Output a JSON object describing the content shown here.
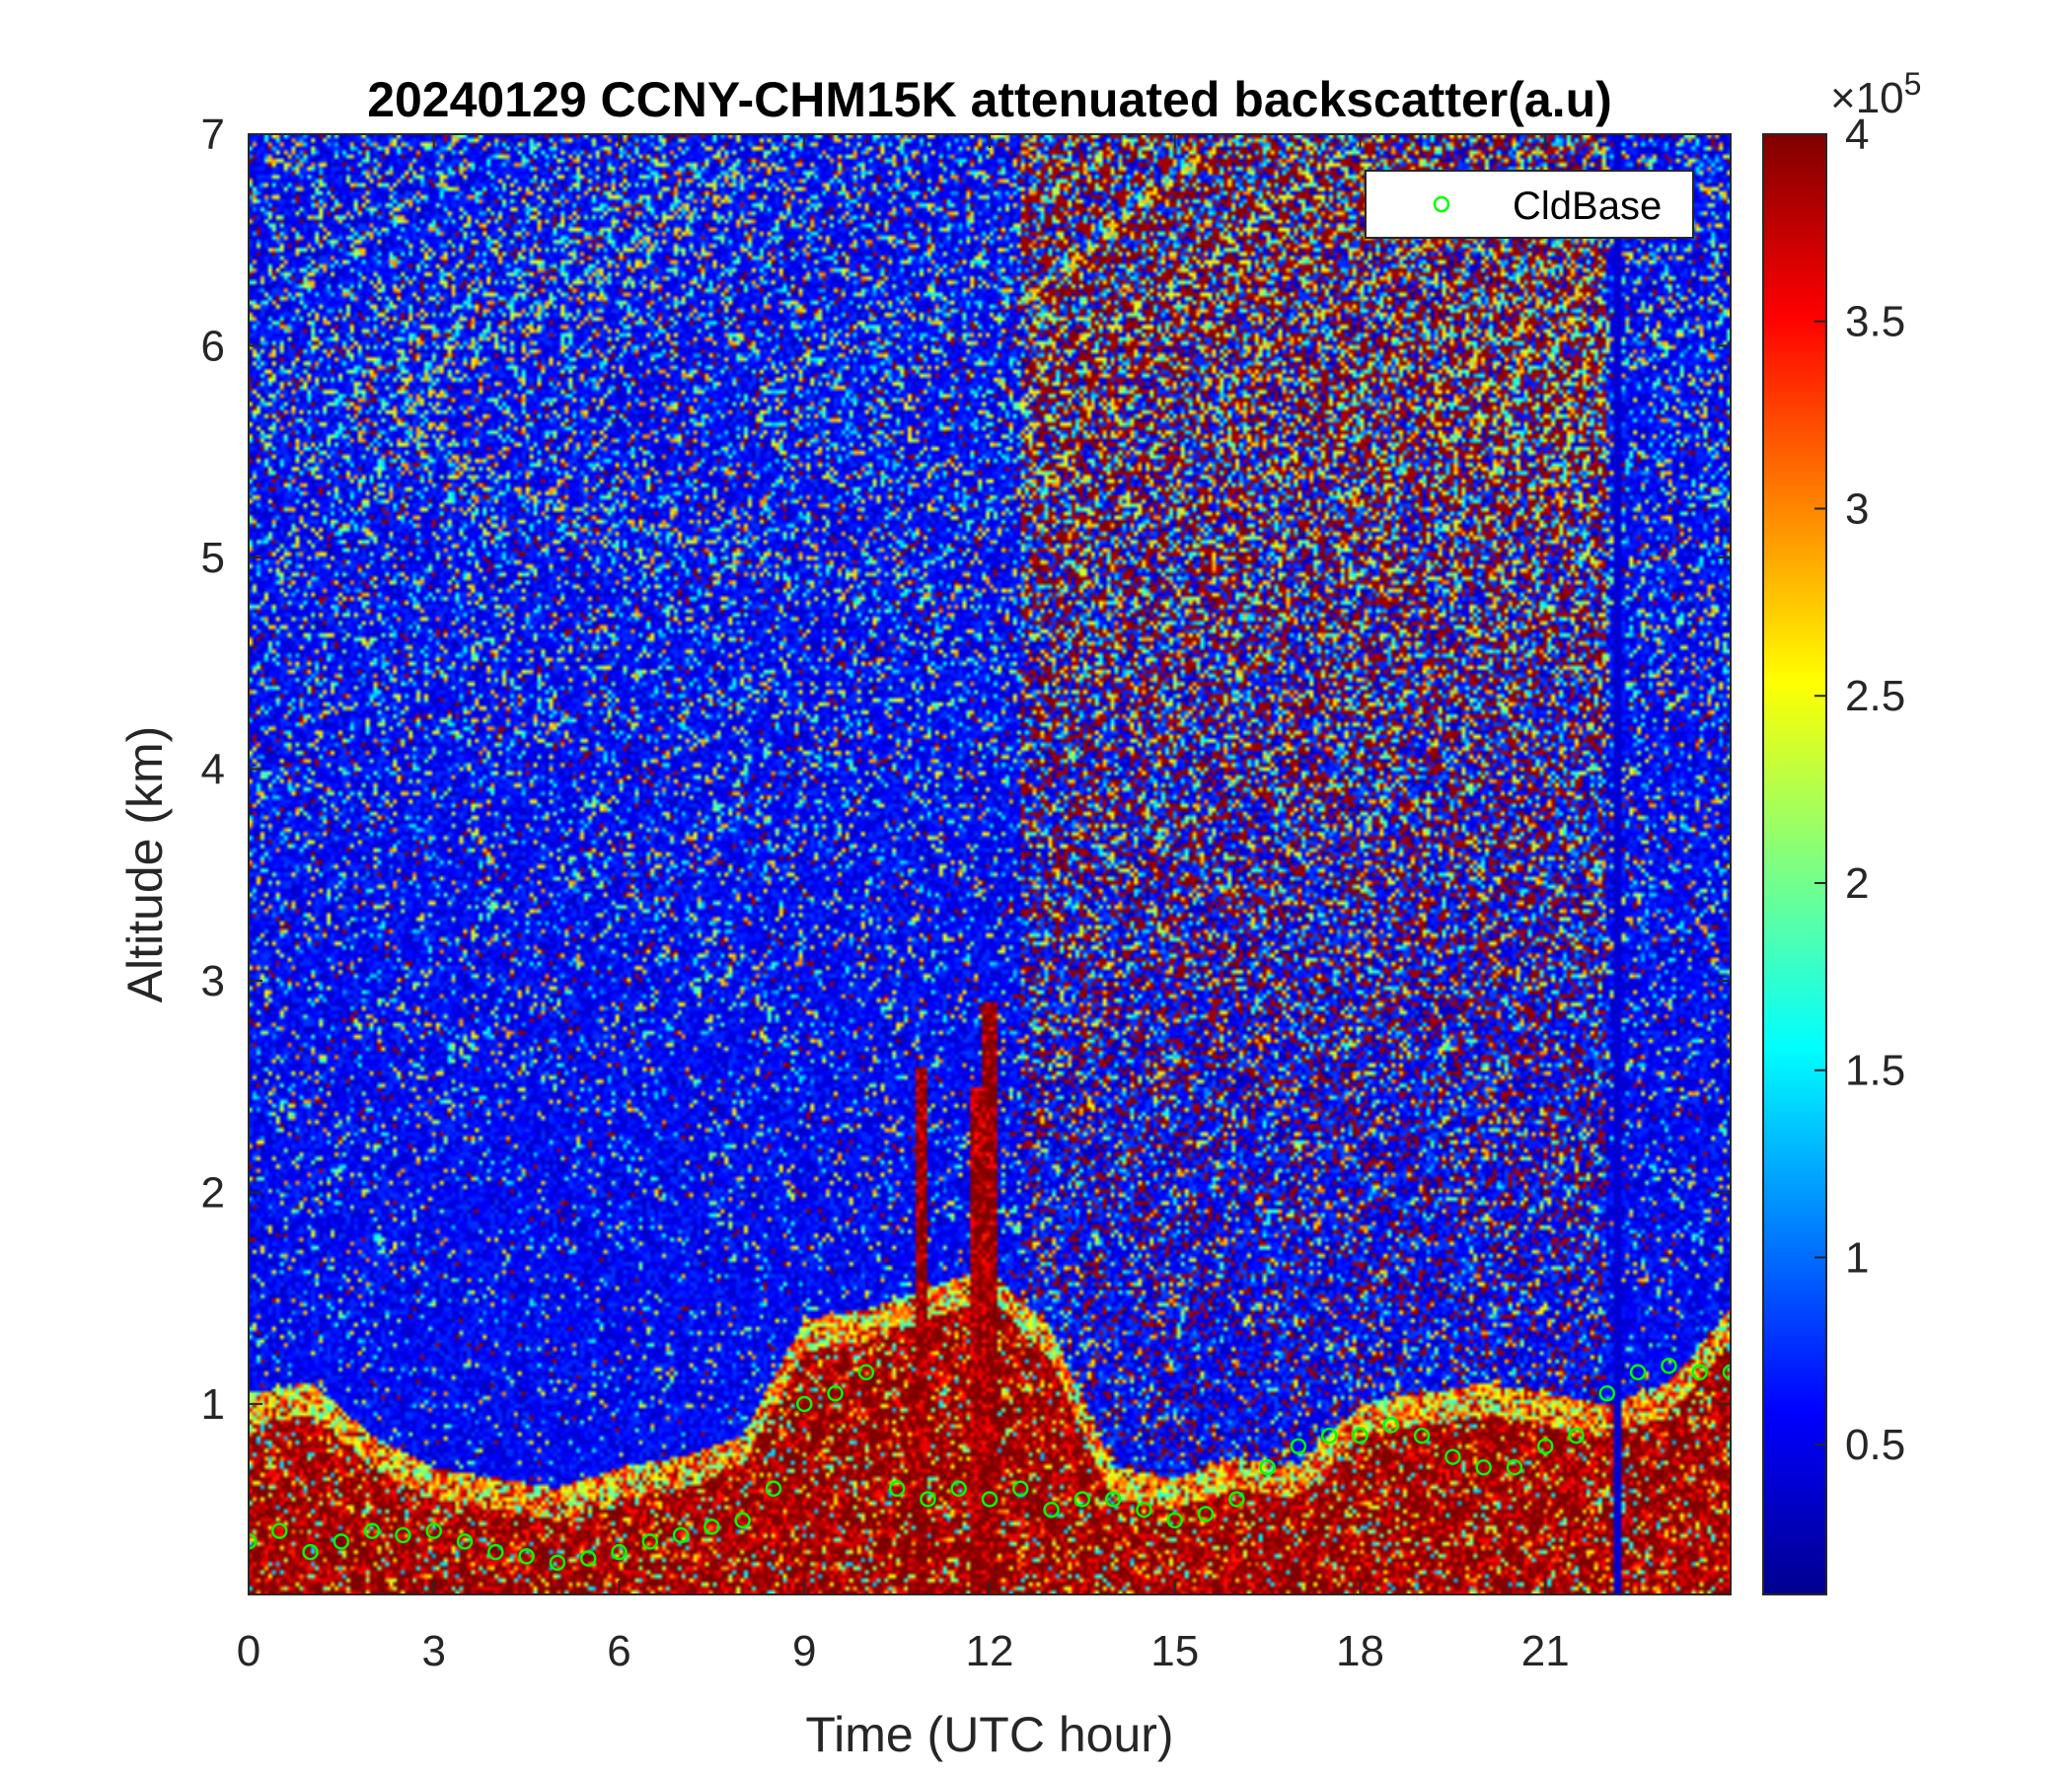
{
  "chart_data": {
    "type": "heatmap",
    "title": "20240129 CCNY-CHM15K attenuated backscatter(a.u)",
    "xlabel": "Time (UTC hour)",
    "ylabel": "Altitude (km)",
    "xlim": [
      0,
      24
    ],
    "ylim": [
      0.1,
      7
    ],
    "x_ticks": [
      0,
      3,
      6,
      9,
      12,
      15,
      18,
      21
    ],
    "x_tick_labels": [
      "0",
      "3",
      "6",
      "9",
      "12",
      "15",
      "18",
      "21"
    ],
    "y_ticks": [
      1,
      2,
      3,
      4,
      5,
      6,
      7
    ],
    "y_tick_labels": [
      "1",
      "2",
      "3",
      "4",
      "5",
      "6",
      "7"
    ],
    "colorbar": {
      "colormap": "jet",
      "range": [
        10000,
        400000
      ],
      "ticks": [
        0.5,
        1,
        1.5,
        2,
        2.5,
        3,
        3.5,
        4
      ],
      "tick_labels": [
        "0.5",
        "1",
        "1.5",
        "2",
        "2.5",
        "3",
        "3.5",
        "4"
      ],
      "multiplier_label": "×10",
      "multiplier_exponent": "5"
    },
    "legend": {
      "entries": [
        "CldBase"
      ],
      "placement": "top-right",
      "marker": "circle",
      "color": "#00ff00"
    },
    "series": [
      {
        "name": "CldBase",
        "marker": "o",
        "color": "#00ff00",
        "x": [
          0.0,
          0.5,
          1.0,
          1.5,
          2.0,
          2.5,
          3.0,
          3.5,
          4.0,
          4.5,
          5.0,
          5.5,
          6.0,
          6.5,
          7.0,
          7.5,
          8.0,
          8.5,
          9.0,
          9.5,
          10.0,
          10.5,
          11.0,
          11.5,
          12.0,
          12.5,
          13.0,
          13.5,
          14.0,
          14.5,
          15.0,
          15.5,
          16.0,
          16.5,
          17.0,
          17.5,
          18.0,
          18.5,
          19.0,
          19.5,
          20.0,
          20.5,
          21.0,
          21.5,
          22.0,
          22.5,
          23.0,
          23.5,
          24.0
        ],
        "y": [
          0.35,
          0.4,
          0.3,
          0.35,
          0.4,
          0.38,
          0.4,
          0.35,
          0.3,
          0.28,
          0.25,
          0.27,
          0.3,
          0.35,
          0.38,
          0.42,
          0.45,
          0.6,
          1.0,
          1.05,
          1.15,
          0.6,
          0.55,
          0.6,
          0.55,
          0.6,
          0.5,
          0.55,
          0.55,
          0.5,
          0.45,
          0.48,
          0.55,
          0.7,
          0.8,
          0.85,
          0.85,
          0.9,
          0.85,
          0.75,
          0.7,
          0.7,
          0.8,
          0.85,
          1.05,
          1.15,
          1.18,
          1.15,
          1.15
        ]
      }
    ],
    "field_description": {
      "background_level": [
        0.03,
        0.08
      ],
      "boundary_layer_top_km": [
        0.9,
        0.95,
        0.7,
        0.55,
        0.5,
        0.45,
        0.55,
        0.6,
        0.7,
        1.25,
        1.3,
        1.4,
        1.5,
        1.2,
        0.55,
        0.5,
        0.6,
        0.55,
        0.85,
        0.9,
        0.95,
        0.9,
        0.85,
        0.95,
        1.3
      ],
      "tall_plumes": [
        {
          "x": 10.9,
          "top": 2.6
        },
        {
          "x": 11.8,
          "top": 2.5
        },
        {
          "x": 12.0,
          "top": 2.9
        }
      ],
      "high_noise_region": {
        "x": [
          12.5,
          22.0
        ],
        "min_alt": 1.2
      }
    }
  }
}
